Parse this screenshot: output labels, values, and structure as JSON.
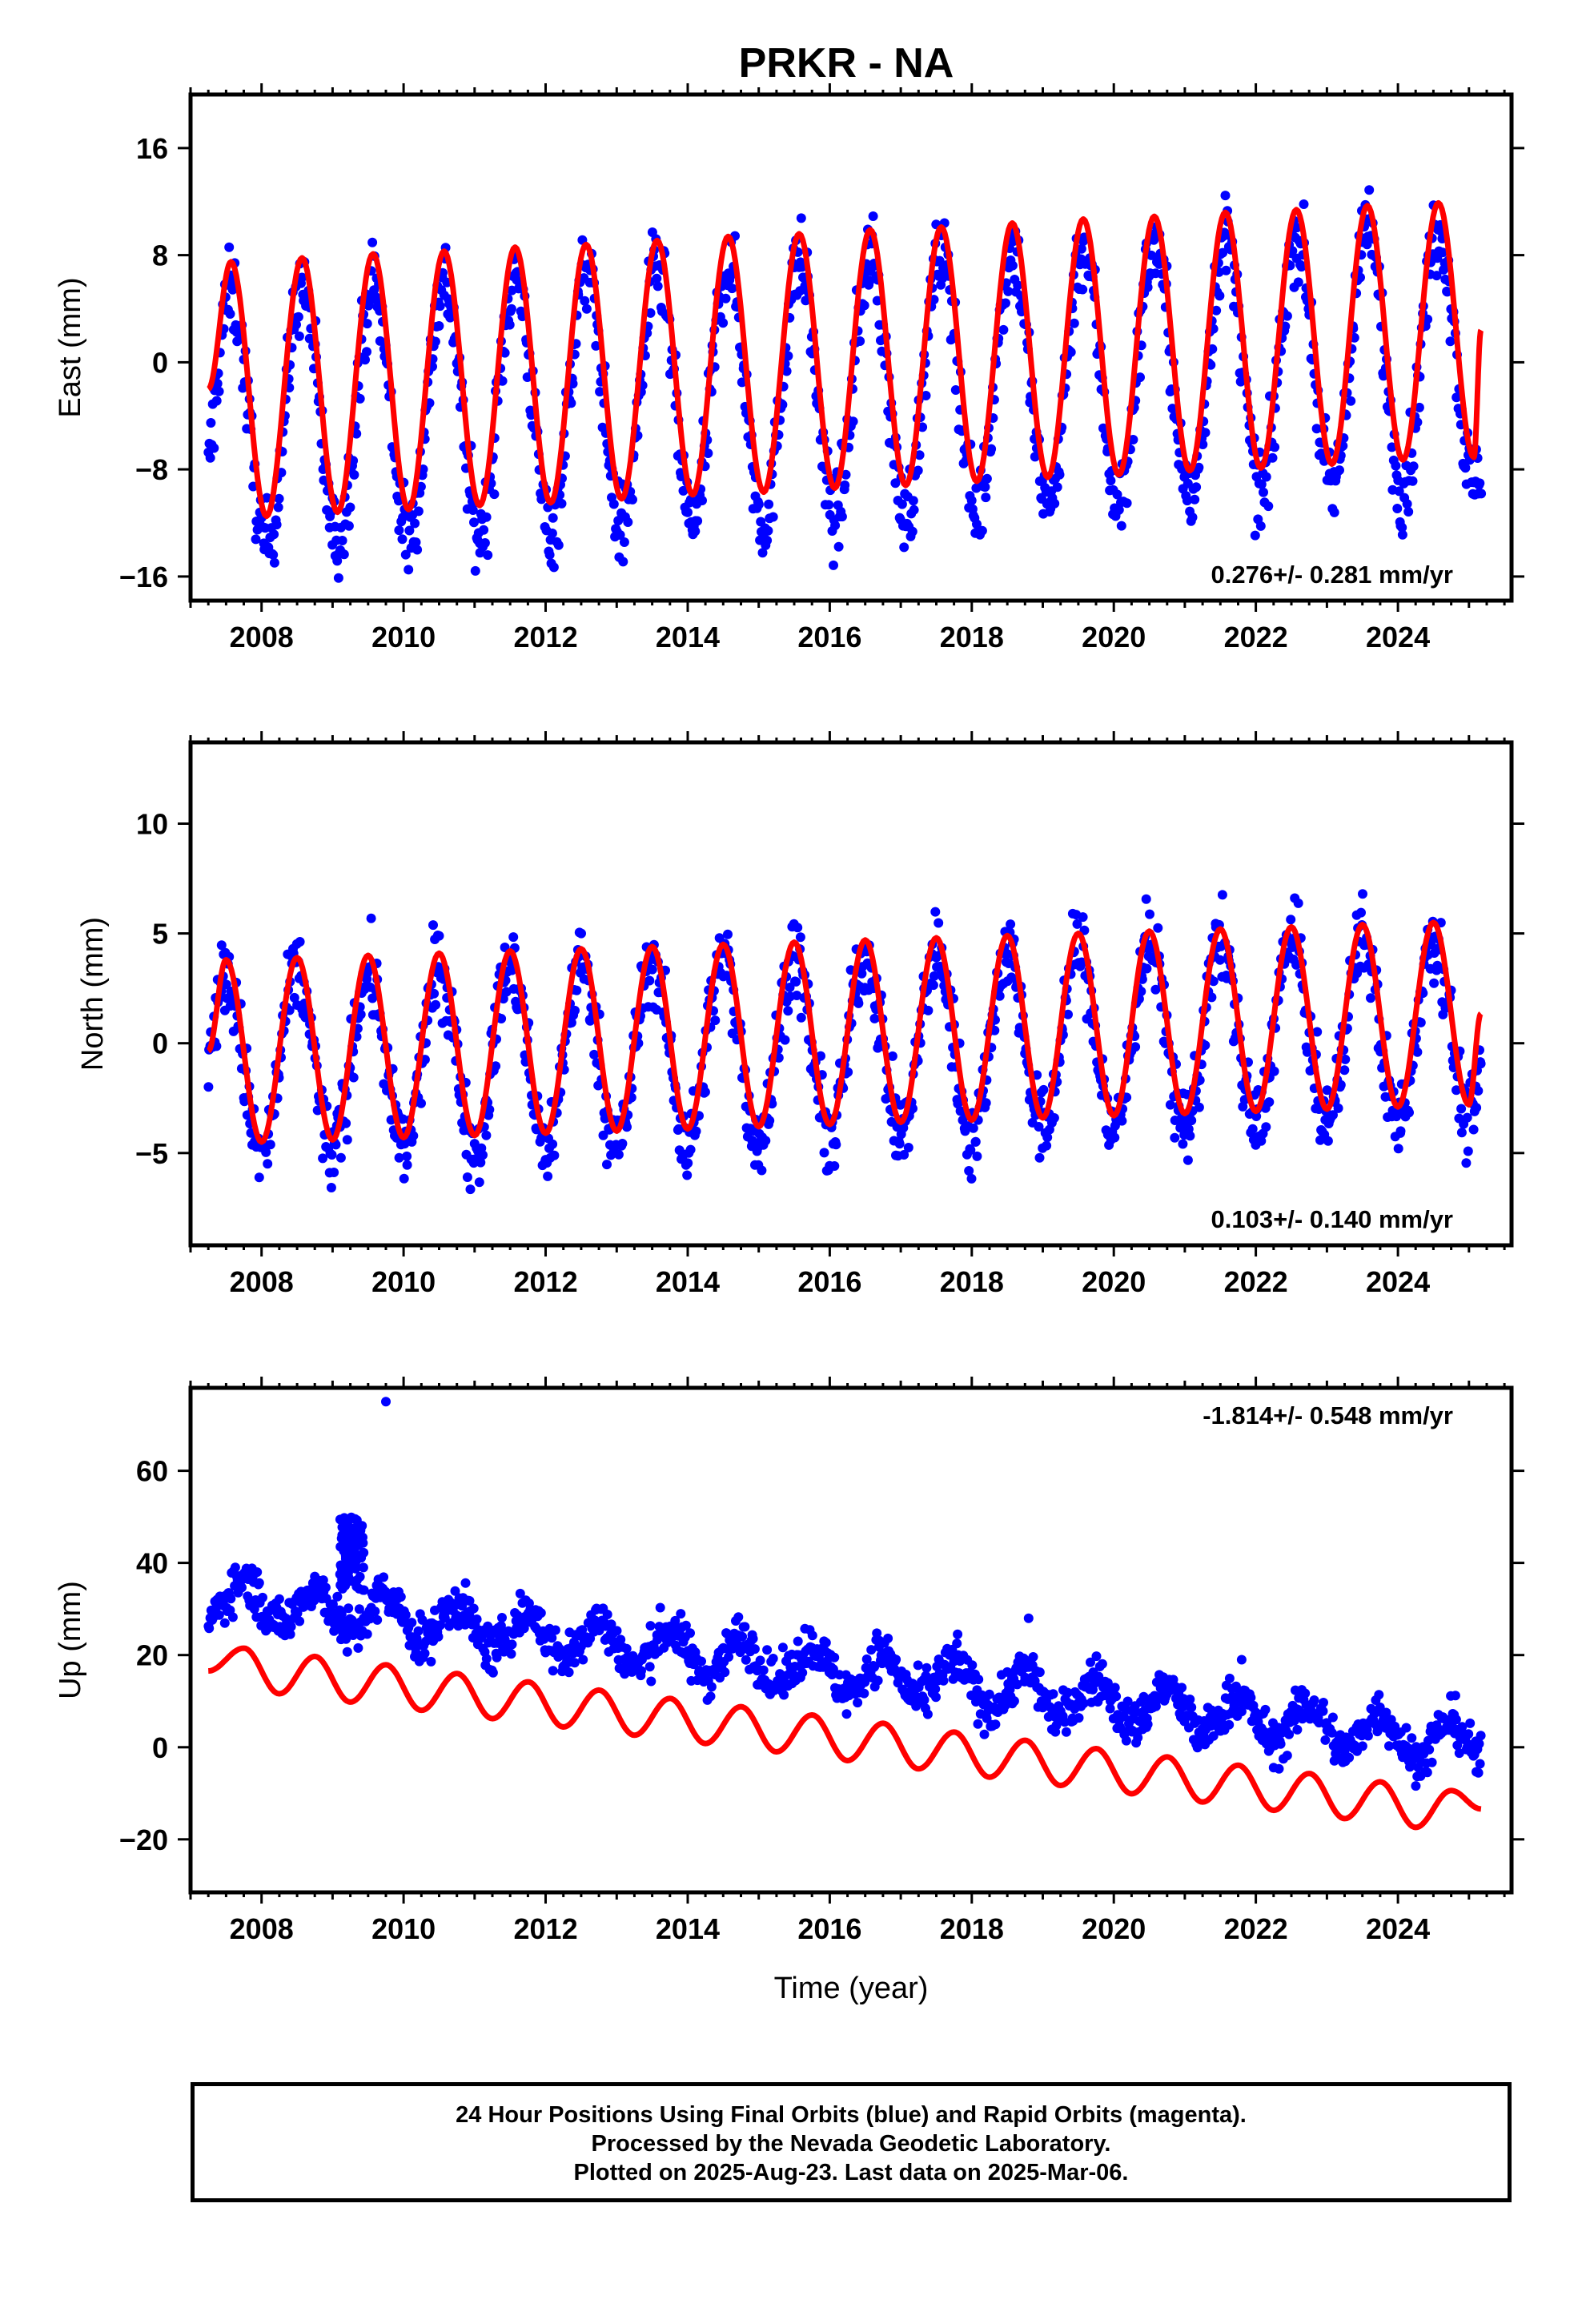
{
  "title": "PRKR - NA",
  "xlabel": "Time (year)",
  "footer": {
    "line1": "24 Hour Positions Using Final Orbits (blue) and Rapid Orbits (magenta).",
    "line2": "Processed by the Nevada Geodetic Laboratory.",
    "line3": "Plotted on 2025-Aug-23. Last data on 2025-Mar-06."
  },
  "colors": {
    "points": "#0000ff",
    "model": "#ff0000",
    "axes": "#000000"
  },
  "chart_data": [
    {
      "type": "scatter",
      "ylabel": "East (mm)",
      "xlim": [
        2007.0,
        2025.6
      ],
      "ylim": [
        -17.8,
        20.0
      ],
      "xticks": [
        2008,
        2010,
        2012,
        2014,
        2016,
        2018,
        2020,
        2022,
        2024
      ],
      "yticks": [
        -16,
        -8,
        0,
        8,
        16
      ],
      "annotation": "0.276+/- 0.281 mm/yr",
      "annotation_corner": "bottom-right",
      "series": [
        {
          "role": "daily positions",
          "data_span": [
            2007.25,
            2025.17
          ],
          "model": {
            "offset": -2.0,
            "rate_mm_per_yr": 0.276,
            "annual_amplitude_start": 9.5,
            "annual_amplitude_end": 9.7,
            "peak_phase_year_fraction": 0.57,
            "scatter_mm": 2.2
          }
        },
        {
          "role": "model fit",
          "annual_peaks": [
            [
              2007.57,
              7.5
            ],
            [
              2008.57,
              7.8
            ],
            [
              2009.57,
              8.1
            ],
            [
              2010.57,
              8.3
            ],
            [
              2011.57,
              8.6
            ],
            [
              2012.57,
              8.8
            ],
            [
              2013.57,
              9.1
            ],
            [
              2014.57,
              9.4
            ],
            [
              2015.57,
              9.6
            ],
            [
              2016.57,
              9.9
            ],
            [
              2017.57,
              10.1
            ],
            [
              2018.57,
              10.4
            ],
            [
              2019.57,
              10.7
            ],
            [
              2020.57,
              10.9
            ],
            [
              2021.57,
              11.2
            ],
            [
              2022.57,
              11.4
            ],
            [
              2023.57,
              11.7
            ],
            [
              2024.57,
              11.9
            ]
          ],
          "annual_troughs": [
            [
              2008.07,
              -11.5
            ],
            [
              2009.07,
              -11.2
            ],
            [
              2010.07,
              -11.0
            ],
            [
              2011.07,
              -10.7
            ],
            [
              2012.07,
              -10.5
            ],
            [
              2013.07,
              -10.2
            ],
            [
              2014.07,
              -9.9
            ],
            [
              2015.07,
              -9.7
            ],
            [
              2016.07,
              -9.4
            ],
            [
              2017.07,
              -9.2
            ],
            [
              2018.07,
              -8.9
            ],
            [
              2019.07,
              -8.6
            ],
            [
              2020.07,
              -8.4
            ],
            [
              2021.07,
              -8.1
            ],
            [
              2022.07,
              -7.9
            ],
            [
              2023.07,
              -7.6
            ],
            [
              2024.07,
              -7.3
            ],
            [
              2025.07,
              -7.1
            ]
          ]
        }
      ]
    },
    {
      "type": "scatter",
      "ylabel": "North (mm)",
      "xlim": [
        2007.0,
        2025.6
      ],
      "ylim": [
        -9.2,
        13.7
      ],
      "xticks": [
        2008,
        2010,
        2012,
        2014,
        2016,
        2018,
        2020,
        2022,
        2024
      ],
      "yticks": [
        -5,
        0,
        5,
        10
      ],
      "annotation": "0.103+/- 0.140 mm/yr",
      "annotation_corner": "bottom-right",
      "series": [
        {
          "role": "daily positions",
          "data_span": [
            2007.25,
            2025.17
          ],
          "model": {
            "offset": -0.2,
            "rate_mm_per_yr": 0.103,
            "annual_amplitude_start": 4.1,
            "annual_amplitude_end": 4.2,
            "peak_phase_year_fraction": 0.5,
            "scatter_mm": 1.3
          }
        },
        {
          "role": "model fit",
          "annual_peaks": [
            [
              2007.5,
              3.8
            ],
            [
              2008.5,
              3.9
            ],
            [
              2009.5,
              4.0
            ],
            [
              2010.5,
              4.1
            ],
            [
              2011.5,
              4.2
            ],
            [
              2012.5,
              4.3
            ],
            [
              2013.5,
              4.4
            ],
            [
              2014.5,
              4.5
            ],
            [
              2015.5,
              4.6
            ],
            [
              2016.5,
              4.7
            ],
            [
              2017.5,
              4.8
            ],
            [
              2018.5,
              4.9
            ],
            [
              2019.5,
              5.0
            ],
            [
              2020.5,
              5.1
            ],
            [
              2021.5,
              5.2
            ],
            [
              2022.5,
              5.3
            ],
            [
              2023.5,
              5.4
            ],
            [
              2024.5,
              5.5
            ]
          ],
          "annual_troughs": [
            [
              2008.0,
              -4.5
            ],
            [
              2009.0,
              -4.4
            ],
            [
              2010.0,
              -4.3
            ],
            [
              2011.0,
              -4.2
            ],
            [
              2012.0,
              -4.1
            ],
            [
              2013.0,
              -4.0
            ],
            [
              2014.0,
              -3.9
            ],
            [
              2015.0,
              -3.8
            ],
            [
              2016.0,
              -3.7
            ],
            [
              2017.0,
              -3.6
            ],
            [
              2018.0,
              -3.5
            ],
            [
              2019.0,
              -3.4
            ],
            [
              2020.0,
              -3.3
            ],
            [
              2021.0,
              -3.2
            ],
            [
              2022.0,
              -3.1
            ],
            [
              2023.0,
              -3.0
            ],
            [
              2024.0,
              -2.9
            ],
            [
              2025.0,
              -2.8
            ]
          ]
        }
      ]
    },
    {
      "type": "scatter",
      "ylabel": "Up (mm)",
      "xlim": [
        2007.0,
        2025.6
      ],
      "ylim": [
        -31.5,
        78.0
      ],
      "xticks": [
        2008,
        2010,
        2012,
        2014,
        2016,
        2018,
        2020,
        2022,
        2024
      ],
      "yticks": [
        -20,
        0,
        20,
        40,
        60
      ],
      "annotation": "-1.814+/- 0.548 mm/yr",
      "annotation_corner": "top-right",
      "series": [
        {
          "role": "daily positions",
          "data_span": [
            2007.25,
            2025.17
          ],
          "model": {
            "offset": 17.0,
            "rate_mm_per_yr": -1.814,
            "annual_amplitude": 4.5,
            "peak_phase_year_fraction": 0.75,
            "scatter_mm": 3.5
          },
          "outliers": [
            [
              2009.75,
              75.0
            ],
            [
              2024.8,
              3.0
            ],
            [
              2021.8,
              19.0
            ],
            [
              2017.8,
              24.5
            ],
            [
              2018.8,
              28.0
            ]
          ],
          "offset_episode": {
            "x": [
              2009.1,
              2009.45
            ],
            "y_center": 43.0,
            "y_range": [
              34.0,
              50.5
            ]
          }
        },
        {
          "role": "model fit",
          "annual_peaks": [
            [
              2007.75,
              21.5
            ],
            [
              2008.75,
              19.7
            ],
            [
              2009.75,
              17.9
            ],
            [
              2010.75,
              16.0
            ],
            [
              2011.75,
              14.2
            ],
            [
              2012.75,
              12.4
            ],
            [
              2013.75,
              10.6
            ],
            [
              2014.75,
              8.8
            ],
            [
              2015.75,
              7.0
            ],
            [
              2016.75,
              5.2
            ],
            [
              2017.75,
              3.3
            ],
            [
              2018.75,
              1.5
            ],
            [
              2019.75,
              -0.3
            ],
            [
              2020.75,
              -2.1
            ],
            [
              2021.75,
              -3.9
            ],
            [
              2022.75,
              -5.7
            ],
            [
              2023.75,
              -7.5
            ],
            [
              2024.75,
              -9.4
            ]
          ],
          "annual_troughs": [
            [
              2008.25,
              11.6
            ],
            [
              2009.25,
              9.8
            ],
            [
              2010.25,
              8.0
            ],
            [
              2011.25,
              6.2
            ],
            [
              2012.25,
              4.4
            ],
            [
              2013.25,
              2.6
            ],
            [
              2014.25,
              0.8
            ],
            [
              2015.25,
              -1.0
            ],
            [
              2016.25,
              -2.9
            ],
            [
              2017.25,
              -4.7
            ],
            [
              2018.25,
              -6.5
            ],
            [
              2019.25,
              -8.3
            ],
            [
              2020.25,
              -10.1
            ],
            [
              2021.25,
              -11.9
            ],
            [
              2022.25,
              -13.7
            ],
            [
              2023.25,
              -15.5
            ],
            [
              2024.25,
              -17.4
            ]
          ]
        }
      ]
    }
  ]
}
